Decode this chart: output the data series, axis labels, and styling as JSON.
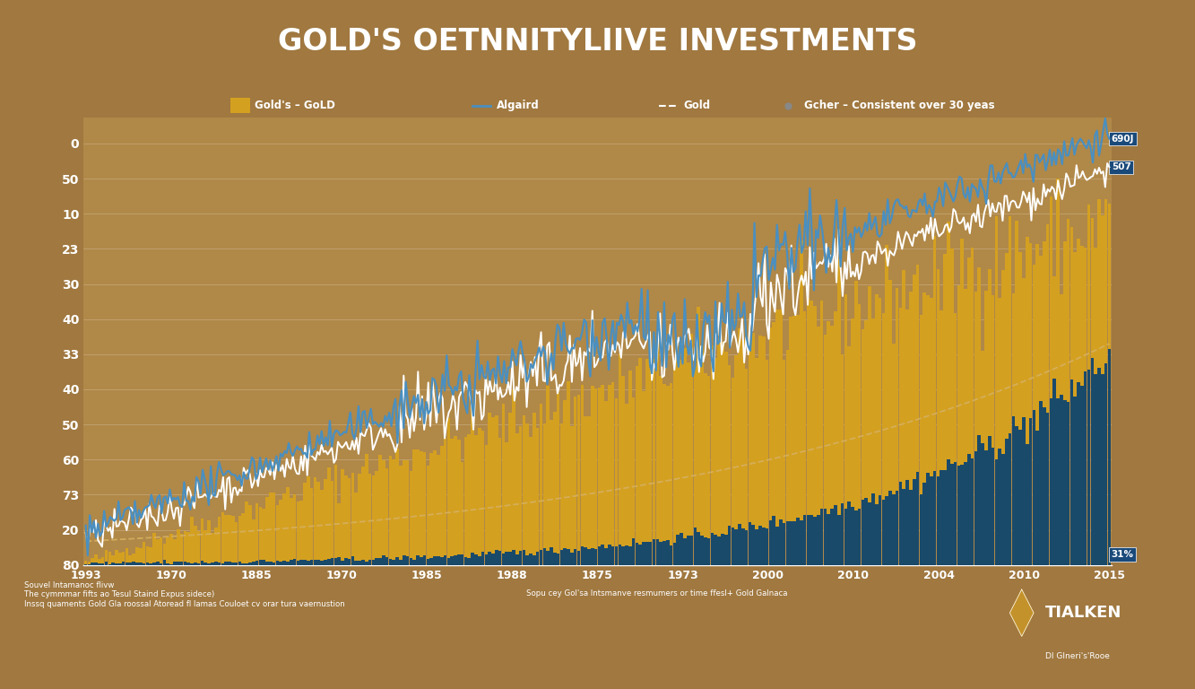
{
  "title": "GOLD'S OETNNITYLIIVE INVESTMENTS",
  "title_color": "#ffffff",
  "title_bg_color": "#1a3a5c",
  "background_color": "#a07840",
  "chart_bg_color": "#b08848",
  "stripe_color": "#c8a020",
  "gold_bar_color": "#d4a020",
  "blue_bar_color": "#1a4a6a",
  "white_line_color": "#ffffff",
  "blue_line_color": "#4a8fc0",
  "dashed_line_color": "#d4b060",
  "ytick_labels": [
    "80",
    "20",
    "73",
    "60",
    "50",
    "40",
    "33",
    "40",
    "30",
    "23",
    "10",
    "50",
    "0"
  ],
  "xtick_labels": [
    "1993",
    "1970",
    "1885",
    "1970",
    "1985",
    "1988",
    "1875",
    "1973",
    "2000",
    "2010",
    "2004",
    "2010",
    "2015"
  ],
  "end_label1_text": "690J",
  "end_label2_text": "507",
  "end_label3_text": "31%",
  "end_label_color": "#1a4a7a",
  "source_text": "Souvel Intamanoc flivw\nThe cymmmar fifts ao Tesul Staind Expus sidece)\nInssq quaments Gold Gla roossal Atoread fl lamas Couloet cv orar tura vaernustion",
  "source_text2": "Sopu cey Gol'sa lntsmanve resmumers or time ffesl+ Gold Galnaca",
  "logo_text": "TIALKEN",
  "logo_sub": "DI GIneri's'Rooe",
  "legend_label1": "Gold's – GoLD",
  "legend_label2": "Algaird",
  "legend_label3": "Gold",
  "legend_label4": "Gcher – Consistent over 30 yeas"
}
